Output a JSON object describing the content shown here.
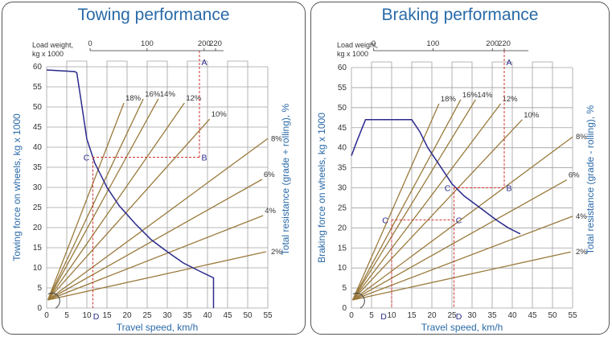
{
  "chart_data": [
    {
      "type": "line",
      "title": "Towing performance",
      "xlabel": "Travel speed, km/h",
      "ylabel": "Towing force on wheels, kg x 1000",
      "y2label": "Total resistance (grade + rolling), %",
      "toplabel_line1": "Load weight,",
      "toplabel_line2": "kg x 1000",
      "xlim": [
        0,
        55
      ],
      "ylim": [
        0,
        60
      ],
      "x_ticks": [
        0,
        5,
        10,
        15,
        20,
        25,
        30,
        35,
        40,
        45,
        50,
        55
      ],
      "x_tick_labels": [
        "0",
        "5",
        "10",
        "15",
        "20",
        "25",
        "30",
        "35",
        "40",
        "45",
        "50",
        "55"
      ],
      "y_ticks": [
        0,
        5,
        10,
        15,
        20,
        25,
        30,
        35,
        40,
        45,
        50,
        55,
        60
      ],
      "y_tick_labels": [
        "0",
        "5",
        "10",
        "15",
        "20",
        "25",
        "30",
        "35",
        "40",
        "45",
        "50",
        "55",
        "60"
      ],
      "load_scale": {
        "ticks": [
          0,
          100,
          200,
          220
        ],
        "labels": [
          "0",
          "100",
          "200",
          "220"
        ],
        "x_at_max": 42,
        "x_at_zero": 10.8
      },
      "performance_curve": [
        [
          0,
          59.2
        ],
        [
          7,
          58.8
        ],
        [
          7.5,
          58.5
        ],
        [
          8.5,
          52
        ],
        [
          10,
          42
        ],
        [
          12,
          36
        ],
        [
          15,
          30
        ],
        [
          18,
          25.5
        ],
        [
          22,
          21
        ],
        [
          26,
          17
        ],
        [
          30,
          14
        ],
        [
          34,
          11.2
        ],
        [
          38,
          9.2
        ],
        [
          41.5,
          7.5
        ],
        [
          41.5,
          0
        ]
      ],
      "resistance_lines": [
        {
          "label": "18%",
          "slope": 2.55
        },
        {
          "label": "16%",
          "slope": 2.08
        },
        {
          "label": "14%",
          "slope": 1.8
        },
        {
          "label": "12%",
          "slope": 1.43
        },
        {
          "label": "10%",
          "slope": 1.11
        },
        {
          "label": "8%",
          "slope": 0.73
        },
        {
          "label": "6%",
          "slope": 0.56
        },
        {
          "label": "4%",
          "slope": 0.39
        },
        {
          "label": "2%",
          "slope": 0.22
        }
      ],
      "line_origin": [
        0,
        2
      ],
      "example_points": {
        "A": [
          38,
          64
        ],
        "B": [
          38,
          37.5
        ],
        "C": [
          11.5,
          37.5
        ],
        "D": [
          11.5,
          0
        ]
      },
      "point_labels": [
        "A",
        "B",
        "C",
        "D"
      ],
      "colors": {
        "curve": "#2a2a8c",
        "lines": "#9a7a3c",
        "dashed": "#d03030",
        "axis_text": "#2a6aa8",
        "grid": "#a0a0a0"
      }
    },
    {
      "type": "line",
      "title": "Braking performance",
      "xlabel": "Travel speed, km/h",
      "ylabel": "Braking force on wheels, kg x 1000",
      "y2label": "Total resistance (grade - rolling), %",
      "toplabel_line1": "Load weight,",
      "toplabel_line2": "kg x 1000",
      "xlim": [
        0,
        55
      ],
      "ylim": [
        0,
        60
      ],
      "x_ticks": [
        0,
        5,
        10,
        15,
        20,
        25,
        30,
        35,
        40,
        45,
        50,
        55
      ],
      "x_tick_labels": [
        "0",
        "5",
        "10",
        "15",
        "20",
        "25",
        "30",
        "35",
        "40",
        "45",
        "50",
        "55"
      ],
      "y_ticks": [
        0,
        5,
        10,
        15,
        20,
        25,
        30,
        35,
        40,
        45,
        50,
        55,
        60
      ],
      "y_tick_labels": [
        "0",
        "5",
        "10",
        "15",
        "20",
        "25",
        "30",
        "35",
        "40",
        "45",
        "50",
        "55",
        "60"
      ],
      "load_scale": {
        "ticks": [
          0,
          100,
          200,
          220
        ],
        "labels": [
          "0",
          "100",
          "200",
          "220"
        ],
        "x_at_max": 38,
        "x_at_zero": 5.5
      },
      "performance_curve": [
        [
          0,
          38
        ],
        [
          1.5,
          42
        ],
        [
          3.5,
          47
        ],
        [
          15,
          47
        ],
        [
          17,
          44
        ],
        [
          19,
          40
        ],
        [
          22,
          35.5
        ],
        [
          25,
          31
        ],
        [
          28,
          28
        ],
        [
          32,
          25
        ],
        [
          36,
          22
        ],
        [
          39,
          20
        ],
        [
          42,
          18.5
        ]
      ],
      "resistance_lines": [
        {
          "label": "18%",
          "slope": 2.25
        },
        {
          "label": "16%",
          "slope": 1.84
        },
        {
          "label": "14%",
          "slope": 1.62
        },
        {
          "label": "12%",
          "slope": 1.32
        },
        {
          "label": "10%",
          "slope": 1.06
        },
        {
          "label": "8%",
          "slope": 0.74
        },
        {
          "label": "6%",
          "slope": 0.56
        },
        {
          "label": "4%",
          "slope": 0.38
        },
        {
          "label": "2%",
          "slope": 0.22
        }
      ],
      "line_origin": [
        0,
        2
      ],
      "example_points": {
        "A": [
          38,
          64
        ],
        "B": [
          38,
          30
        ],
        "C": [
          25.5,
          30
        ],
        "C1": [
          25.5,
          22
        ],
        "C2": [
          10,
          22
        ],
        "D1": [
          25.5,
          0
        ],
        "D": [
          10,
          0
        ]
      },
      "point_labels": [
        "A",
        "B",
        "C",
        "C",
        "C",
        "D",
        "D"
      ],
      "colors": {
        "curve": "#2a2a8c",
        "lines": "#9a7a3c",
        "dashed": "#d03030",
        "axis_text": "#2a6aa8",
        "grid": "#a0a0a0"
      }
    }
  ]
}
